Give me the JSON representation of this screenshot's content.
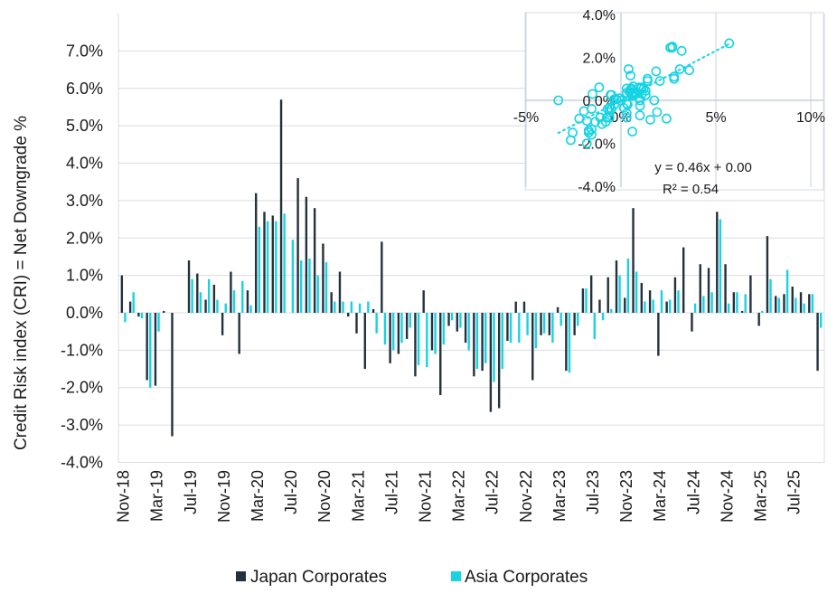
{
  "colors": {
    "japan": "#23303d",
    "asia": "#17d3e3",
    "grid": "#d9dce0",
    "inset_axis": "#bcc8d8"
  },
  "chart_data": [
    {
      "type": "bar",
      "ylabel": "Credit Risk index (CRI) = Net Downgrade %",
      "ylim": [
        -4,
        7
      ],
      "yticks": [
        {
          "v": 7,
          "label": "7.0%"
        },
        {
          "v": 6,
          "label": "6.0%"
        },
        {
          "v": 5,
          "label": "5.0%"
        },
        {
          "v": 4,
          "label": "4.0%"
        },
        {
          "v": 3,
          "label": "3.0%"
        },
        {
          "v": 2,
          "label": "2.0%"
        },
        {
          "v": 1,
          "label": "1.0%"
        },
        {
          "v": 0,
          "label": "0.0%"
        },
        {
          "v": -1,
          "label": "-1.0%"
        },
        {
          "v": -2,
          "label": "-2.0%"
        },
        {
          "v": -3,
          "label": "-3.0%"
        },
        {
          "v": -4,
          "label": "-4.0%"
        }
      ],
      "grid": true,
      "legend_position": "bottom",
      "x_tick_every": 4,
      "categories": [
        "Nov-18",
        "Dec-18",
        "Jan-19",
        "Feb-19",
        "Mar-19",
        "Apr-19",
        "May-19",
        "Jun-19",
        "Jul-19",
        "Aug-19",
        "Sep-19",
        "Oct-19",
        "Nov-19",
        "Dec-19",
        "Jan-20",
        "Feb-20",
        "Mar-20",
        "Apr-20",
        "May-20",
        "Jun-20",
        "Jul-20",
        "Aug-20",
        "Sep-20",
        "Oct-20",
        "Nov-20",
        "Dec-20",
        "Jan-21",
        "Feb-21",
        "Mar-21",
        "Apr-21",
        "May-21",
        "Jun-21",
        "Jul-21",
        "Aug-21",
        "Sep-21",
        "Oct-21",
        "Nov-21",
        "Dec-21",
        "Jan-22",
        "Feb-22",
        "Mar-22",
        "Apr-22",
        "May-22",
        "Jun-22",
        "Jul-22",
        "Aug-22",
        "Sep-22",
        "Oct-22",
        "Nov-22",
        "Dec-22",
        "Jan-23",
        "Feb-23",
        "Mar-23",
        "Apr-23",
        "May-23",
        "Jun-23",
        "Jul-23",
        "Aug-23",
        "Sep-23",
        "Oct-23",
        "Nov-23",
        "Dec-23",
        "Jan-24",
        "Feb-24",
        "Mar-24",
        "Apr-24",
        "May-24",
        "Jun-24",
        "Jul-24",
        "Aug-24",
        "Sep-24",
        "Oct-24",
        "Nov-24",
        "Dec-24",
        "Jan-25",
        "Feb-25",
        "Mar-25",
        "Apr-25",
        "May-25",
        "Jun-25",
        "Jul-25",
        "Aug-25",
        "Sep-25",
        "Oct-25"
      ],
      "series": [
        {
          "name": "Japan Corporates",
          "values": [
            1.0,
            0.3,
            -0.1,
            -1.8,
            -1.95,
            0.05,
            -3.3,
            0.0,
            1.4,
            1.05,
            0.35,
            0.75,
            -0.6,
            1.1,
            -1.1,
            0.6,
            3.2,
            2.7,
            2.6,
            5.7,
            0.0,
            3.6,
            3.1,
            2.8,
            1.85,
            0.55,
            1.1,
            -0.1,
            -0.55,
            -1.5,
            0.1,
            1.9,
            -1.35,
            -1.1,
            -0.7,
            -1.7,
            0.6,
            -1.0,
            -2.2,
            -0.35,
            -0.5,
            -0.8,
            -1.7,
            -1.55,
            -2.65,
            -2.55,
            -0.75,
            0.3,
            0.3,
            -1.8,
            -0.6,
            -0.6,
            0.15,
            -1.55,
            -0.6,
            0.65,
            1.0,
            0.35,
            0.95,
            1.4,
            0.4,
            2.8,
            0.8,
            0.6,
            -1.15,
            0.3,
            0.95,
            1.75,
            -0.5,
            1.3,
            1.2,
            2.7,
            1.3,
            0.55,
            0.05,
            1.0,
            -0.35,
            2.05,
            0.45,
            0.5,
            0.7,
            0.55,
            0.5,
            -1.55
          ]
        },
        {
          "name": "Asia Corporates",
          "values": [
            -0.25,
            0.55,
            -0.15,
            -2.0,
            -0.5,
            0.0,
            0.0,
            0.0,
            0.9,
            0.55,
            0.9,
            0.35,
            0.25,
            0.6,
            0.85,
            0.2,
            2.3,
            2.45,
            2.45,
            2.65,
            1.95,
            1.4,
            1.45,
            1.0,
            1.35,
            0.3,
            0.3,
            0.3,
            0.25,
            0.3,
            -0.55,
            -0.85,
            -1.0,
            -0.8,
            -0.4,
            -1.4,
            -1.45,
            -1.1,
            -0.85,
            -0.2,
            -0.4,
            -1.0,
            -1.5,
            -1.35,
            -1.85,
            -1.5,
            -0.8,
            -0.8,
            -0.6,
            -0.95,
            -0.55,
            -0.8,
            -0.35,
            -1.6,
            -0.35,
            0.65,
            -0.7,
            -0.2,
            0.1,
            1.0,
            1.45,
            1.1,
            0.3,
            0.35,
            0.6,
            0.35,
            0.6,
            0.0,
            0.25,
            0.45,
            0.55,
            2.5,
            0.25,
            0.55,
            0.5,
            0.0,
            0.05,
            0.9,
            0.4,
            1.15,
            0.4,
            0.25,
            0.5,
            -0.4
          ]
        }
      ]
    },
    {
      "type": "scatter",
      "xlim": [
        -5,
        10
      ],
      "ylim": [
        -4,
        4
      ],
      "xticks": [
        {
          "v": -5,
          "label": "-5%"
        },
        {
          "v": 0,
          "label": "0%"
        },
        {
          "v": 5,
          "label": "5%"
        },
        {
          "v": 10,
          "label": "10%"
        }
      ],
      "yticks": [
        {
          "v": 4,
          "label": "4.0%"
        },
        {
          "v": 2,
          "label": "2.0%"
        },
        {
          "v": 0,
          "label": "0.0%"
        },
        {
          "v": -2,
          "label": "-2.0%"
        },
        {
          "v": -4,
          "label": "-4.0%"
        }
      ],
      "trendline": {
        "slope": 0.46,
        "intercept": 0.0,
        "x_range": [
          -3.3,
          5.7
        ]
      },
      "equation": "y = 0.46x + 0.00",
      "r_squared": "R² = 0.54",
      "points": [
        [
          1.0,
          -0.25
        ],
        [
          0.3,
          0.55
        ],
        [
          -1.8,
          -2.0
        ],
        [
          -1.95,
          -0.5
        ],
        [
          -3.3,
          0.0
        ],
        [
          1.4,
          0.9
        ],
        [
          1.05,
          0.55
        ],
        [
          0.75,
          0.35
        ],
        [
          1.1,
          0.6
        ],
        [
          0.6,
          0.2
        ],
        [
          3.2,
          2.3
        ],
        [
          2.7,
          2.45
        ],
        [
          2.6,
          2.45
        ],
        [
          5.7,
          2.65
        ],
        [
          3.6,
          1.4
        ],
        [
          3.1,
          1.45
        ],
        [
          2.8,
          1.0
        ],
        [
          1.85,
          1.35
        ],
        [
          0.55,
          0.3
        ],
        [
          1.1,
          0.3
        ],
        [
          -0.55,
          0.25
        ],
        [
          -1.5,
          0.3
        ],
        [
          1.9,
          -0.55
        ],
        [
          -1.35,
          -1.0
        ],
        [
          -1.1,
          -0.8
        ],
        [
          -0.7,
          -0.4
        ],
        [
          -1.7,
          -1.4
        ],
        [
          0.6,
          -1.45
        ],
        [
          -1.0,
          -1.1
        ],
        [
          -2.2,
          -0.85
        ],
        [
          -0.35,
          -0.2
        ],
        [
          -0.5,
          -0.4
        ],
        [
          -0.8,
          -1.0
        ],
        [
          -1.7,
          -1.5
        ],
        [
          -1.55,
          -1.35
        ],
        [
          -2.65,
          -1.85
        ],
        [
          -2.55,
          -1.5
        ],
        [
          -0.75,
          -0.8
        ],
        [
          0.3,
          -0.8
        ],
        [
          0.3,
          -0.6
        ],
        [
          -1.8,
          -0.95
        ],
        [
          -0.6,
          -0.55
        ],
        [
          -0.6,
          -0.8
        ],
        [
          0.15,
          -0.35
        ],
        [
          -1.55,
          -1.6
        ],
        [
          -0.6,
          -0.35
        ],
        [
          0.65,
          0.65
        ],
        [
          1.0,
          -0.7
        ],
        [
          0.35,
          -0.2
        ],
        [
          0.95,
          0.1
        ],
        [
          1.4,
          1.0
        ],
        [
          0.4,
          1.45
        ],
        [
          2.8,
          1.1
        ],
        [
          0.8,
          0.3
        ],
        [
          0.6,
          0.35
        ],
        [
          -1.15,
          0.6
        ],
        [
          0.3,
          0.35
        ],
        [
          0.95,
          0.6
        ],
        [
          1.75,
          0.0
        ],
        [
          -0.5,
          0.25
        ],
        [
          1.3,
          0.45
        ],
        [
          1.2,
          0.55
        ],
        [
          2.7,
          2.5
        ],
        [
          1.3,
          0.25
        ],
        [
          0.55,
          0.55
        ],
        [
          1.0,
          0.0
        ],
        [
          -0.35,
          0.05
        ],
        [
          2.05,
          0.9
        ],
        [
          0.45,
          0.4
        ],
        [
          0.5,
          1.15
        ],
        [
          0.7,
          0.4
        ],
        [
          0.55,
          0.25
        ],
        [
          0.5,
          0.5
        ],
        [
          -1.55,
          -0.4
        ],
        [
          0.0,
          0.0
        ],
        [
          -0.1,
          0.1
        ],
        [
          0.3,
          -0.15
        ],
        [
          -0.25,
          0.05
        ],
        [
          1.55,
          -0.9
        ],
        [
          2.4,
          -0.85
        ]
      ]
    }
  ]
}
